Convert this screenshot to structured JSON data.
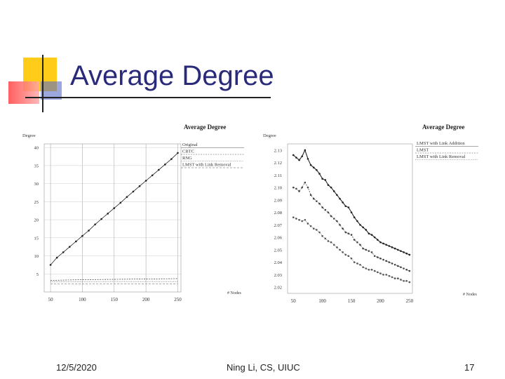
{
  "slide": {
    "title": "Average Degree",
    "footer_date": "12/5/2020",
    "footer_author": "Ning Li, CS, UIUC",
    "footer_page": "17"
  },
  "colors": {
    "title": "#2a2a7a",
    "deco_yellow": "#ffcc1a",
    "deco_red": "#ff5555",
    "deco_blue": "#5a6cc8"
  },
  "chart_data": [
    {
      "type": "line",
      "title": "Average Degree",
      "ylabel": "Degree",
      "xlabel": "# Nodes",
      "x_ticks": [
        50,
        100,
        150,
        200,
        250
      ],
      "y_ticks": [
        5,
        10,
        15,
        20,
        25,
        30,
        35,
        40
      ],
      "xlim": [
        40,
        255
      ],
      "ylim": [
        0,
        41
      ],
      "grid": true,
      "legend_position": "top-right",
      "legend": [
        "Original",
        "CBTC",
        "RNG",
        "LMST with Link Removal"
      ],
      "series": [
        {
          "name": "Original",
          "x": [
            50,
            60,
            70,
            80,
            90,
            100,
            110,
            120,
            130,
            140,
            150,
            160,
            170,
            180,
            190,
            200,
            210,
            220,
            230,
            240,
            250
          ],
          "y": [
            7.5,
            9.5,
            11,
            12.5,
            14,
            15.5,
            17,
            18.7,
            20.2,
            21.7,
            23.2,
            24.7,
            26.3,
            27.8,
            29.3,
            30.8,
            32.3,
            33.8,
            35.3,
            36.8,
            38.5
          ]
        },
        {
          "name": "CBTC",
          "x": [
            50,
            100,
            150,
            200,
            250
          ],
          "y": [
            3.2,
            3.4,
            3.5,
            3.6,
            3.7
          ]
        },
        {
          "name": "RNG",
          "x": [
            50,
            100,
            150,
            200,
            250
          ],
          "y": [
            2.8,
            2.8,
            2.9,
            2.9,
            2.9
          ]
        },
        {
          "name": "LMST with Link Removal",
          "x": [
            50,
            100,
            150,
            200,
            250
          ],
          "y": [
            2.2,
            2.2,
            2.2,
            2.2,
            2.2
          ]
        }
      ]
    },
    {
      "type": "line",
      "title": "Average Degree",
      "ylabel": "Degree",
      "xlabel": "# Nodes",
      "x_ticks": [
        50,
        100,
        150,
        200,
        250
      ],
      "y_ticks": [
        2.02,
        2.03,
        2.04,
        2.05,
        2.06,
        2.07,
        2.08,
        2.09,
        2.1,
        2.11,
        2.12,
        2.13
      ],
      "y_tick_labels": [
        "2.02",
        "2.03",
        "2.04",
        "2.05",
        "2.06",
        "2.07",
        "2.08",
        "2.09",
        "2.10",
        "2.11",
        "2.12",
        "2.13"
      ],
      "xlim": [
        40,
        255
      ],
      "ylim": [
        2.015,
        2.135
      ],
      "grid": false,
      "legend_position": "top-right",
      "legend": [
        "LMST with Link Addition",
        "LMST",
        "LMST with Link Removal"
      ],
      "series": [
        {
          "name": "LMST with Link Addition",
          "x": [
            50,
            55,
            60,
            65,
            70,
            75,
            80,
            85,
            90,
            95,
            100,
            105,
            110,
            115,
            120,
            125,
            130,
            135,
            140,
            145,
            150,
            155,
            160,
            165,
            170,
            175,
            180,
            185,
            190,
            195,
            200,
            205,
            210,
            215,
            220,
            225,
            230,
            235,
            240,
            245,
            250
          ],
          "y": [
            2.126,
            2.124,
            2.122,
            2.125,
            2.13,
            2.123,
            2.118,
            2.116,
            2.114,
            2.111,
            2.107,
            2.106,
            2.102,
            2.1,
            2.097,
            2.094,
            2.091,
            2.088,
            2.085,
            2.084,
            2.08,
            2.076,
            2.073,
            2.07,
            2.068,
            2.066,
            2.063,
            2.062,
            2.06,
            2.058,
            2.056,
            2.055,
            2.054,
            2.053,
            2.052,
            2.051,
            2.05,
            2.049,
            2.048,
            2.047,
            2.046
          ]
        },
        {
          "name": "LMST",
          "x": [
            50,
            55,
            60,
            65,
            70,
            75,
            80,
            85,
            90,
            95,
            100,
            105,
            110,
            115,
            120,
            125,
            130,
            135,
            140,
            145,
            150,
            155,
            160,
            165,
            170,
            175,
            180,
            185,
            190,
            195,
            200,
            205,
            210,
            215,
            220,
            225,
            230,
            235,
            240,
            245,
            250
          ],
          "y": [
            2.1,
            2.099,
            2.097,
            2.1,
            2.104,
            2.1,
            2.094,
            2.091,
            2.089,
            2.087,
            2.084,
            2.082,
            2.08,
            2.077,
            2.075,
            2.073,
            2.07,
            2.067,
            2.064,
            2.063,
            2.062,
            2.058,
            2.056,
            2.054,
            2.051,
            2.05,
            2.049,
            2.048,
            2.045,
            2.044,
            2.043,
            2.042,
            2.041,
            2.04,
            2.039,
            2.038,
            2.037,
            2.036,
            2.035,
            2.034,
            2.033
          ]
        },
        {
          "name": "LMST with Link Removal",
          "x": [
            50,
            55,
            60,
            65,
            70,
            75,
            80,
            85,
            90,
            95,
            100,
            105,
            110,
            115,
            120,
            125,
            130,
            135,
            140,
            145,
            150,
            155,
            160,
            165,
            170,
            175,
            180,
            185,
            190,
            195,
            200,
            205,
            210,
            215,
            220,
            225,
            230,
            235,
            240,
            245,
            250
          ],
          "y": [
            2.076,
            2.075,
            2.074,
            2.073,
            2.074,
            2.071,
            2.069,
            2.067,
            2.066,
            2.064,
            2.061,
            2.059,
            2.057,
            2.056,
            2.054,
            2.052,
            2.05,
            2.048,
            2.046,
            2.045,
            2.043,
            2.04,
            2.039,
            2.038,
            2.036,
            2.035,
            2.034,
            2.034,
            2.033,
            2.032,
            2.031,
            2.03,
            2.03,
            2.029,
            2.028,
            2.027,
            2.027,
            2.026,
            2.025,
            2.025,
            2.024
          ]
        }
      ]
    }
  ]
}
